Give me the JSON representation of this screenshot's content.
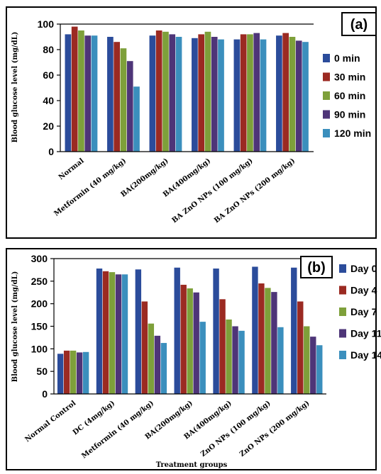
{
  "chart_data": [
    {
      "type": "bar",
      "panel_label": "(a)",
      "ylabel": "Blood glucose  level  (mg/dL)",
      "xlabel": "",
      "ylim": [
        0,
        100
      ],
      "yticks": [
        0,
        20,
        40,
        60,
        80,
        100
      ],
      "grid": false,
      "legend_position": "right",
      "categories": [
        "Normal",
        "Metformin  (40 mg/kg)",
        "BA(200mg/kg)",
        "BA(400mg/kg)",
        "BA ZnO  NPs (100 mg/kg)",
        "BA ZnO  NPs (200 mg/kg)"
      ],
      "series": [
        {
          "name": "0 min",
          "color": "#2b4c9b",
          "values": [
            92,
            90,
            91,
            89,
            88,
            91
          ]
        },
        {
          "name": "30 min",
          "color": "#9b2a22",
          "values": [
            98,
            86,
            95,
            92,
            92,
            93
          ]
        },
        {
          "name": "60 min",
          "color": "#7ea03a",
          "values": [
            95,
            81,
            94,
            94,
            92,
            90
          ]
        },
        {
          "name": "90 min",
          "color": "#4e3578",
          "values": [
            91,
            71,
            92,
            90,
            93,
            87
          ]
        },
        {
          "name": "120 min",
          "color": "#3b8fbd",
          "values": [
            91,
            51,
            90,
            88,
            88,
            86
          ]
        }
      ]
    },
    {
      "type": "bar",
      "panel_label": "(b)",
      "ylabel": "Blood glucose  level  (mg/dL)",
      "xlabel": "Treatment groups",
      "ylim": [
        0,
        300
      ],
      "yticks": [
        0,
        50,
        100,
        150,
        200,
        250,
        300
      ],
      "grid": false,
      "legend_position": "right",
      "categories": [
        "Normal Control",
        "DC (4mg/kg)",
        "Metformin  (40 mg/kg)",
        "BA(200mg/kg)",
        "BA(400mg/kg)",
        "ZnO NPs (100 mg/kg)",
        "ZnO NPs (200 mg/kg)"
      ],
      "series": [
        {
          "name": "Day 0",
          "color": "#2b4c9b",
          "values": [
            89,
            278,
            276,
            280,
            278,
            282,
            280
          ]
        },
        {
          "name": "Day 4",
          "color": "#9b2a22",
          "values": [
            96,
            272,
            205,
            242,
            210,
            245,
            205
          ]
        },
        {
          "name": "Day 7",
          "color": "#7ea03a",
          "values": [
            96,
            270,
            156,
            234,
            165,
            235,
            150
          ]
        },
        {
          "name": "Day 11",
          "color": "#4e3578",
          "values": [
            92,
            265,
            129,
            225,
            150,
            226,
            127
          ]
        },
        {
          "name": "Day 14",
          "color": "#3b8fbd",
          "values": [
            93,
            265,
            113,
            160,
            140,
            148,
            108
          ]
        }
      ]
    }
  ]
}
